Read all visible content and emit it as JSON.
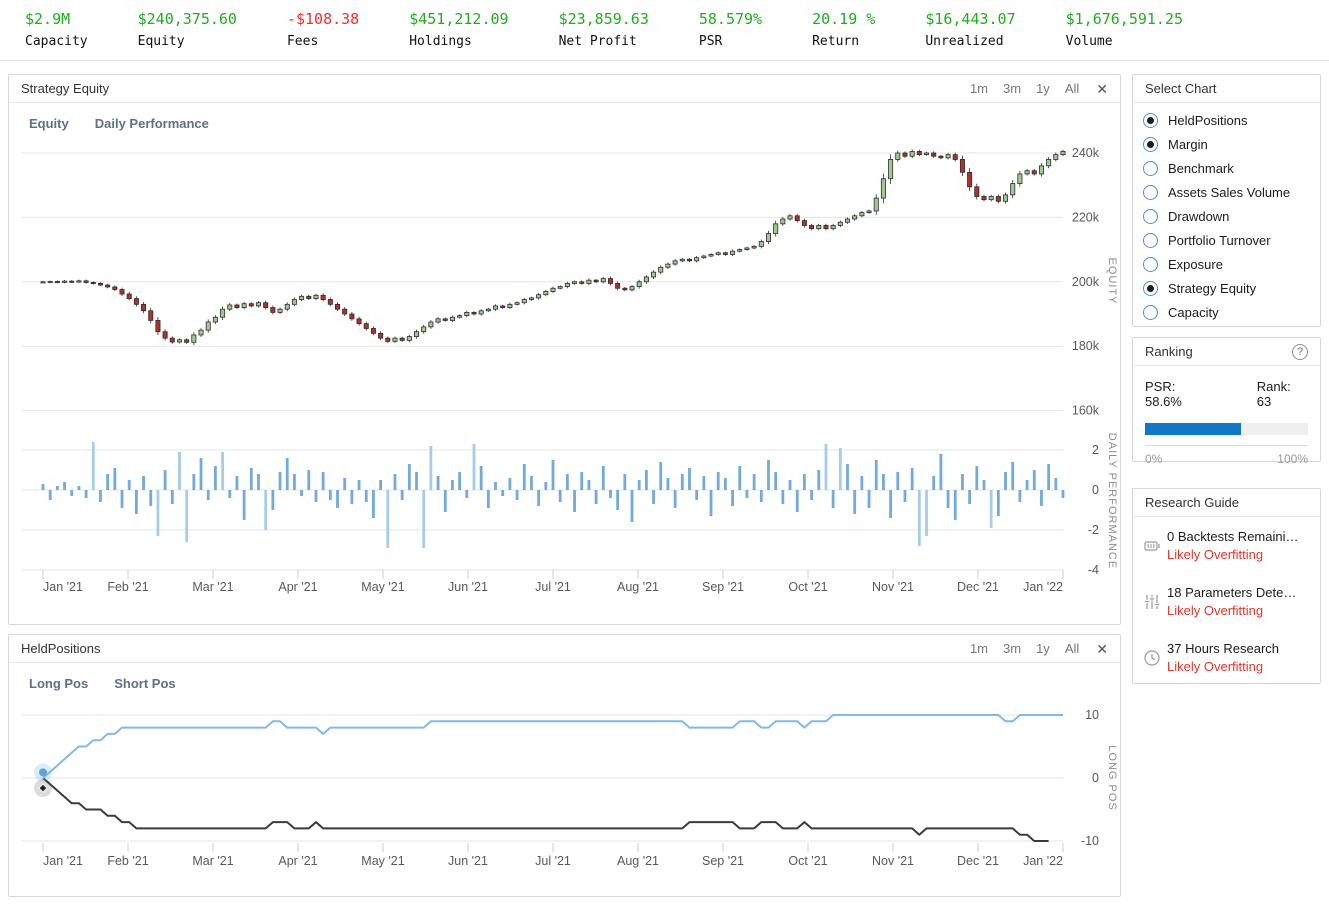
{
  "colors": {
    "green": "#1cb11c",
    "red": "#f62d2d",
    "overfit_red": "#e3352a",
    "candle_up": "#9fca8f",
    "candle_down": "#b13129",
    "candle_stroke": "#2d2d2d",
    "bar_blue": "#74a9dc",
    "bar_blue_light": "#a5cdea",
    "line_blue": "#82b9e6",
    "line_black": "#3b3b3b",
    "progress_blue": "#1377c8"
  },
  "stats": [
    {
      "value": "$2.9M",
      "label": "Capacity",
      "color": "green"
    },
    {
      "value": "$240,375.60",
      "label": "Equity",
      "color": "green"
    },
    {
      "value": "-$108.38",
      "label": "Fees",
      "color": "red"
    },
    {
      "value": "$451,212.09",
      "label": "Holdings",
      "color": "green"
    },
    {
      "value": "$23,859.63",
      "label": "Net Profit",
      "color": "green"
    },
    {
      "value": "58.579%",
      "label": "PSR",
      "color": "green"
    },
    {
      "value": "20.19 %",
      "label": "Return",
      "color": "green"
    },
    {
      "value": "$16,443.07",
      "label": "Unrealized",
      "color": "green"
    },
    {
      "value": "$1,676,591.25",
      "label": "Volume",
      "color": "green"
    }
  ],
  "equity_panel": {
    "title": "Strategy Equity",
    "tabs": [
      "Equity",
      "Daily Performance"
    ],
    "ranges": [
      "1m",
      "3m",
      "1y",
      "All"
    ],
    "close_label": "✕"
  },
  "held_panel": {
    "title": "HeldPositions",
    "tabs": [
      "Long Pos",
      "Short Pos"
    ],
    "ranges": [
      "1m",
      "3m",
      "1y",
      "All"
    ],
    "close_label": "✕"
  },
  "chart_data": {
    "months": [
      "Jan '21",
      "Feb '21",
      "Mar '21",
      "Apr '21",
      "May '21",
      "Jun '21",
      "Jul '21",
      "Aug '21",
      "Sep '21",
      "Oct '21",
      "Nov '21",
      "Dec '21",
      "Jan '22"
    ],
    "equity_candles": {
      "type": "candlestick",
      "ylabel": "EQUITY",
      "yticks": [
        {
          "label": "240k",
          "v": 240
        },
        {
          "label": "220k",
          "v": 220
        },
        {
          "label": "200k",
          "v": 200
        },
        {
          "label": "180k",
          "v": 180
        },
        {
          "label": "160k",
          "v": 160
        }
      ],
      "ylim": [
        155,
        245
      ],
      "unit": "thousand USD",
      "closes": [
        200.0,
        200.1,
        199.9,
        200.2,
        200.0,
        200.3,
        199.8,
        199.5,
        199.0,
        198.4,
        197.6,
        196.2,
        194.8,
        193.0,
        191.0,
        188.0,
        184.5,
        182.5,
        181.3,
        182.0,
        181.2,
        183.5,
        185.0,
        187.5,
        189.0,
        191.5,
        192.8,
        192.0,
        193.2,
        192.5,
        193.5,
        192.0,
        190.5,
        191.5,
        193.0,
        194.5,
        195.5,
        194.8,
        195.8,
        194.5,
        193.0,
        191.5,
        190.0,
        188.5,
        187.0,
        185.5,
        184.0,
        182.5,
        181.5,
        182.5,
        181.8,
        183.0,
        184.5,
        186.0,
        187.5,
        188.5,
        188.0,
        189.0,
        189.5,
        190.5,
        190.0,
        191.0,
        191.5,
        192.5,
        192.0,
        193.0,
        193.5,
        194.5,
        195.0,
        196.0,
        197.0,
        198.0,
        198.5,
        199.5,
        200.0,
        199.5,
        200.5,
        200.0,
        201.0,
        199.5,
        198.0,
        197.5,
        198.5,
        200.0,
        201.5,
        203.0,
        204.5,
        205.5,
        206.5,
        207.0,
        206.5,
        207.5,
        208.0,
        208.5,
        209.0,
        208.5,
        209.5,
        210.0,
        210.5,
        211.0,
        212.5,
        215.0,
        218.0,
        219.5,
        220.5,
        219.0,
        217.5,
        216.5,
        217.5,
        216.5,
        217.5,
        218.5,
        219.5,
        220.5,
        221.5,
        222.0,
        226.0,
        232.0,
        238.0,
        240.0,
        239.0,
        240.5,
        239.5,
        240.0,
        239.0,
        238.5,
        239.5,
        238.0,
        234.0,
        229.5,
        226.5,
        225.5,
        226.5,
        225.0,
        227.0,
        230.5,
        233.5,
        234.5,
        233.5,
        236.0,
        238.0,
        239.5,
        240.5
      ]
    },
    "daily_performance": {
      "type": "bar",
      "ylabel": "DAILY PERFORMANCE",
      "yticks": [
        {
          "label": "2",
          "v": 2
        },
        {
          "label": "0",
          "v": 0
        },
        {
          "label": "-2",
          "v": -2
        },
        {
          "label": "-4",
          "v": -4
        }
      ],
      "ylim": [
        -4,
        2.6
      ],
      "values": [
        0.3,
        -0.5,
        0.2,
        0.4,
        -0.3,
        0.2,
        -0.4,
        2.4,
        -0.6,
        0.8,
        1.1,
        -0.9,
        0.5,
        -1.2,
        0.7,
        -0.8,
        -2.3,
        1.0,
        -0.7,
        1.9,
        -2.6,
        0.8,
        1.6,
        -0.5,
        1.2,
        1.9,
        -0.4,
        0.7,
        -1.5,
        1.1,
        0.8,
        -2.0,
        -1.0,
        0.9,
        1.6,
        0.8,
        -0.3,
        1.0,
        -0.6,
        0.9,
        -0.5,
        -0.9,
        0.6,
        -0.7,
        0.5,
        -0.6,
        -1.4,
        0.5,
        -2.9,
        0.8,
        -0.5,
        1.3,
        0.9,
        -2.9,
        2.2,
        0.7,
        -1.1,
        0.5,
        0.9,
        -0.4,
        2.3,
        1.2,
        -0.9,
        0.4,
        -0.3,
        0.6,
        -0.5,
        1.3,
        0.7,
        -0.8,
        0.4,
        1.5,
        -0.6,
        0.8,
        -1.1,
        0.9,
        0.5,
        -0.7,
        1.2,
        -0.4,
        -1.0,
        0.8,
        -1.6,
        0.5,
        1.0,
        -0.7,
        1.4,
        0.6,
        -0.9,
        0.8,
        1.1,
        -0.5,
        0.7,
        -1.3,
        0.9,
        0.6,
        -0.8,
        1.2,
        -0.4,
        0.8,
        -0.6,
        1.5,
        0.9,
        -0.7,
        0.5,
        -1.1,
        0.8,
        -0.5,
        1.0,
        2.3,
        -0.9,
        2.1,
        1.3,
        -1.2,
        0.7,
        -0.9,
        1.5,
        0.8,
        -1.4,
        0.9,
        -0.6,
        1.1,
        -2.8,
        -2.3,
        0.7,
        1.8,
        -0.9,
        -1.5,
        0.8,
        -0.7,
        1.2,
        0.5,
        -1.9,
        -1.3,
        0.9,
        1.4,
        -0.6,
        0.5,
        1.0,
        -0.8,
        1.3,
        0.6,
        -0.4
      ]
    },
    "held_positions": {
      "type": "line",
      "ylabel": "LONG POS",
      "yticks": [
        {
          "label": "10",
          "v": 10
        },
        {
          "label": "0",
          "v": 0
        },
        {
          "label": "-10",
          "v": -10
        }
      ],
      "ylim": [
        -12,
        12
      ],
      "series": [
        {
          "name": "Long Pos",
          "values": [
            0,
            1,
            2,
            3,
            4,
            5,
            5,
            6,
            6,
            7,
            7,
            8,
            8,
            8,
            8,
            8,
            8,
            8,
            8,
            8,
            8,
            8,
            8,
            8,
            8,
            8,
            8,
            8,
            8,
            8,
            8,
            8,
            9,
            9,
            8,
            8,
            8,
            8,
            8,
            7,
            8,
            8,
            8,
            8,
            8,
            8,
            8,
            8,
            8,
            8,
            8,
            8,
            8,
            8,
            9,
            9,
            9,
            9,
            9,
            9,
            9,
            9,
            9,
            9,
            9,
            9,
            9,
            9,
            9,
            9,
            9,
            9,
            9,
            9,
            9,
            9,
            9,
            9,
            9,
            9,
            9,
            9,
            9,
            9,
            9,
            9,
            9,
            9,
            9,
            9,
            8,
            8,
            8,
            8,
            8,
            8,
            8,
            9,
            9,
            9,
            8,
            8,
            9,
            9,
            9,
            9,
            8,
            9,
            9,
            9,
            10,
            10,
            10,
            10,
            10,
            10,
            10,
            10,
            10,
            10,
            10,
            10,
            10,
            10,
            10,
            10,
            10,
            10,
            10,
            10,
            10,
            10,
            10,
            10,
            9,
            9,
            10,
            10,
            10,
            10,
            10,
            10,
            10
          ]
        },
        {
          "name": "Short Pos",
          "values": [
            0,
            -1,
            -2,
            -3,
            -4,
            -4,
            -5,
            -5,
            -5,
            -6,
            -6,
            -7,
            -7,
            -8,
            -8,
            -8,
            -8,
            -8,
            -8,
            -8,
            -8,
            -8,
            -8,
            -8,
            -8,
            -8,
            -8,
            -8,
            -8,
            -8,
            -8,
            -8,
            -7,
            -7,
            -7,
            -8,
            -8,
            -8,
            -7,
            -8,
            -8,
            -8,
            -8,
            -8,
            -8,
            -8,
            -8,
            -8,
            -8,
            -8,
            -8,
            -8,
            -8,
            -8,
            -8,
            -8,
            -8,
            -8,
            -8,
            -8,
            -8,
            -8,
            -8,
            -8,
            -8,
            -8,
            -8,
            -8,
            -8,
            -8,
            -8,
            -8,
            -8,
            -8,
            -8,
            -8,
            -8,
            -8,
            -8,
            -8,
            -8,
            -8,
            -8,
            -8,
            -8,
            -8,
            -8,
            -8,
            -8,
            -8,
            -7,
            -7,
            -7,
            -7,
            -7,
            -7,
            -7,
            -8,
            -8,
            -8,
            -7,
            -7,
            -7,
            -8,
            -8,
            -8,
            -7,
            -8,
            -8,
            -8,
            -8,
            -8,
            -8,
            -8,
            -8,
            -8,
            -8,
            -8,
            -8,
            -8,
            -8,
            -8,
            -9,
            -8,
            -8,
            -8,
            -8,
            -8,
            -8,
            -8,
            -8,
            -8,
            -8,
            -8,
            -8,
            -8,
            -9,
            -9,
            -10,
            -10,
            -10
          ]
        }
      ]
    }
  },
  "sidebar": {
    "select_chart": {
      "title": "Select Chart",
      "options": [
        {
          "label": "HeldPositions",
          "selected": true
        },
        {
          "label": "Margin",
          "selected": true
        },
        {
          "label": "Benchmark",
          "selected": false
        },
        {
          "label": "Assets Sales Volume",
          "selected": false
        },
        {
          "label": "Drawdown",
          "selected": false
        },
        {
          "label": "Portfolio Turnover",
          "selected": false
        },
        {
          "label": "Exposure",
          "selected": false
        },
        {
          "label": "Strategy Equity",
          "selected": true
        },
        {
          "label": "Capacity",
          "selected": false
        }
      ]
    },
    "ranking": {
      "title": "Ranking",
      "help_label": "?",
      "psr_label": "PSR: 58.6%",
      "rank_label": "Rank: 63",
      "progress_pct": 58.6,
      "min_label": "0%",
      "max_label": "100%"
    },
    "research_guide": {
      "title": "Research Guide",
      "items": [
        {
          "icon": "backtests-icon",
          "line1": "0 Backtests Remaini…",
          "line2": "Likely Overfitting"
        },
        {
          "icon": "parameters-icon",
          "line1": "18 Parameters Dete…",
          "line2": "Likely Overfitting"
        },
        {
          "icon": "clock-icon",
          "line1": "37 Hours Research",
          "line2": "Likely Overfitting"
        }
      ]
    }
  }
}
